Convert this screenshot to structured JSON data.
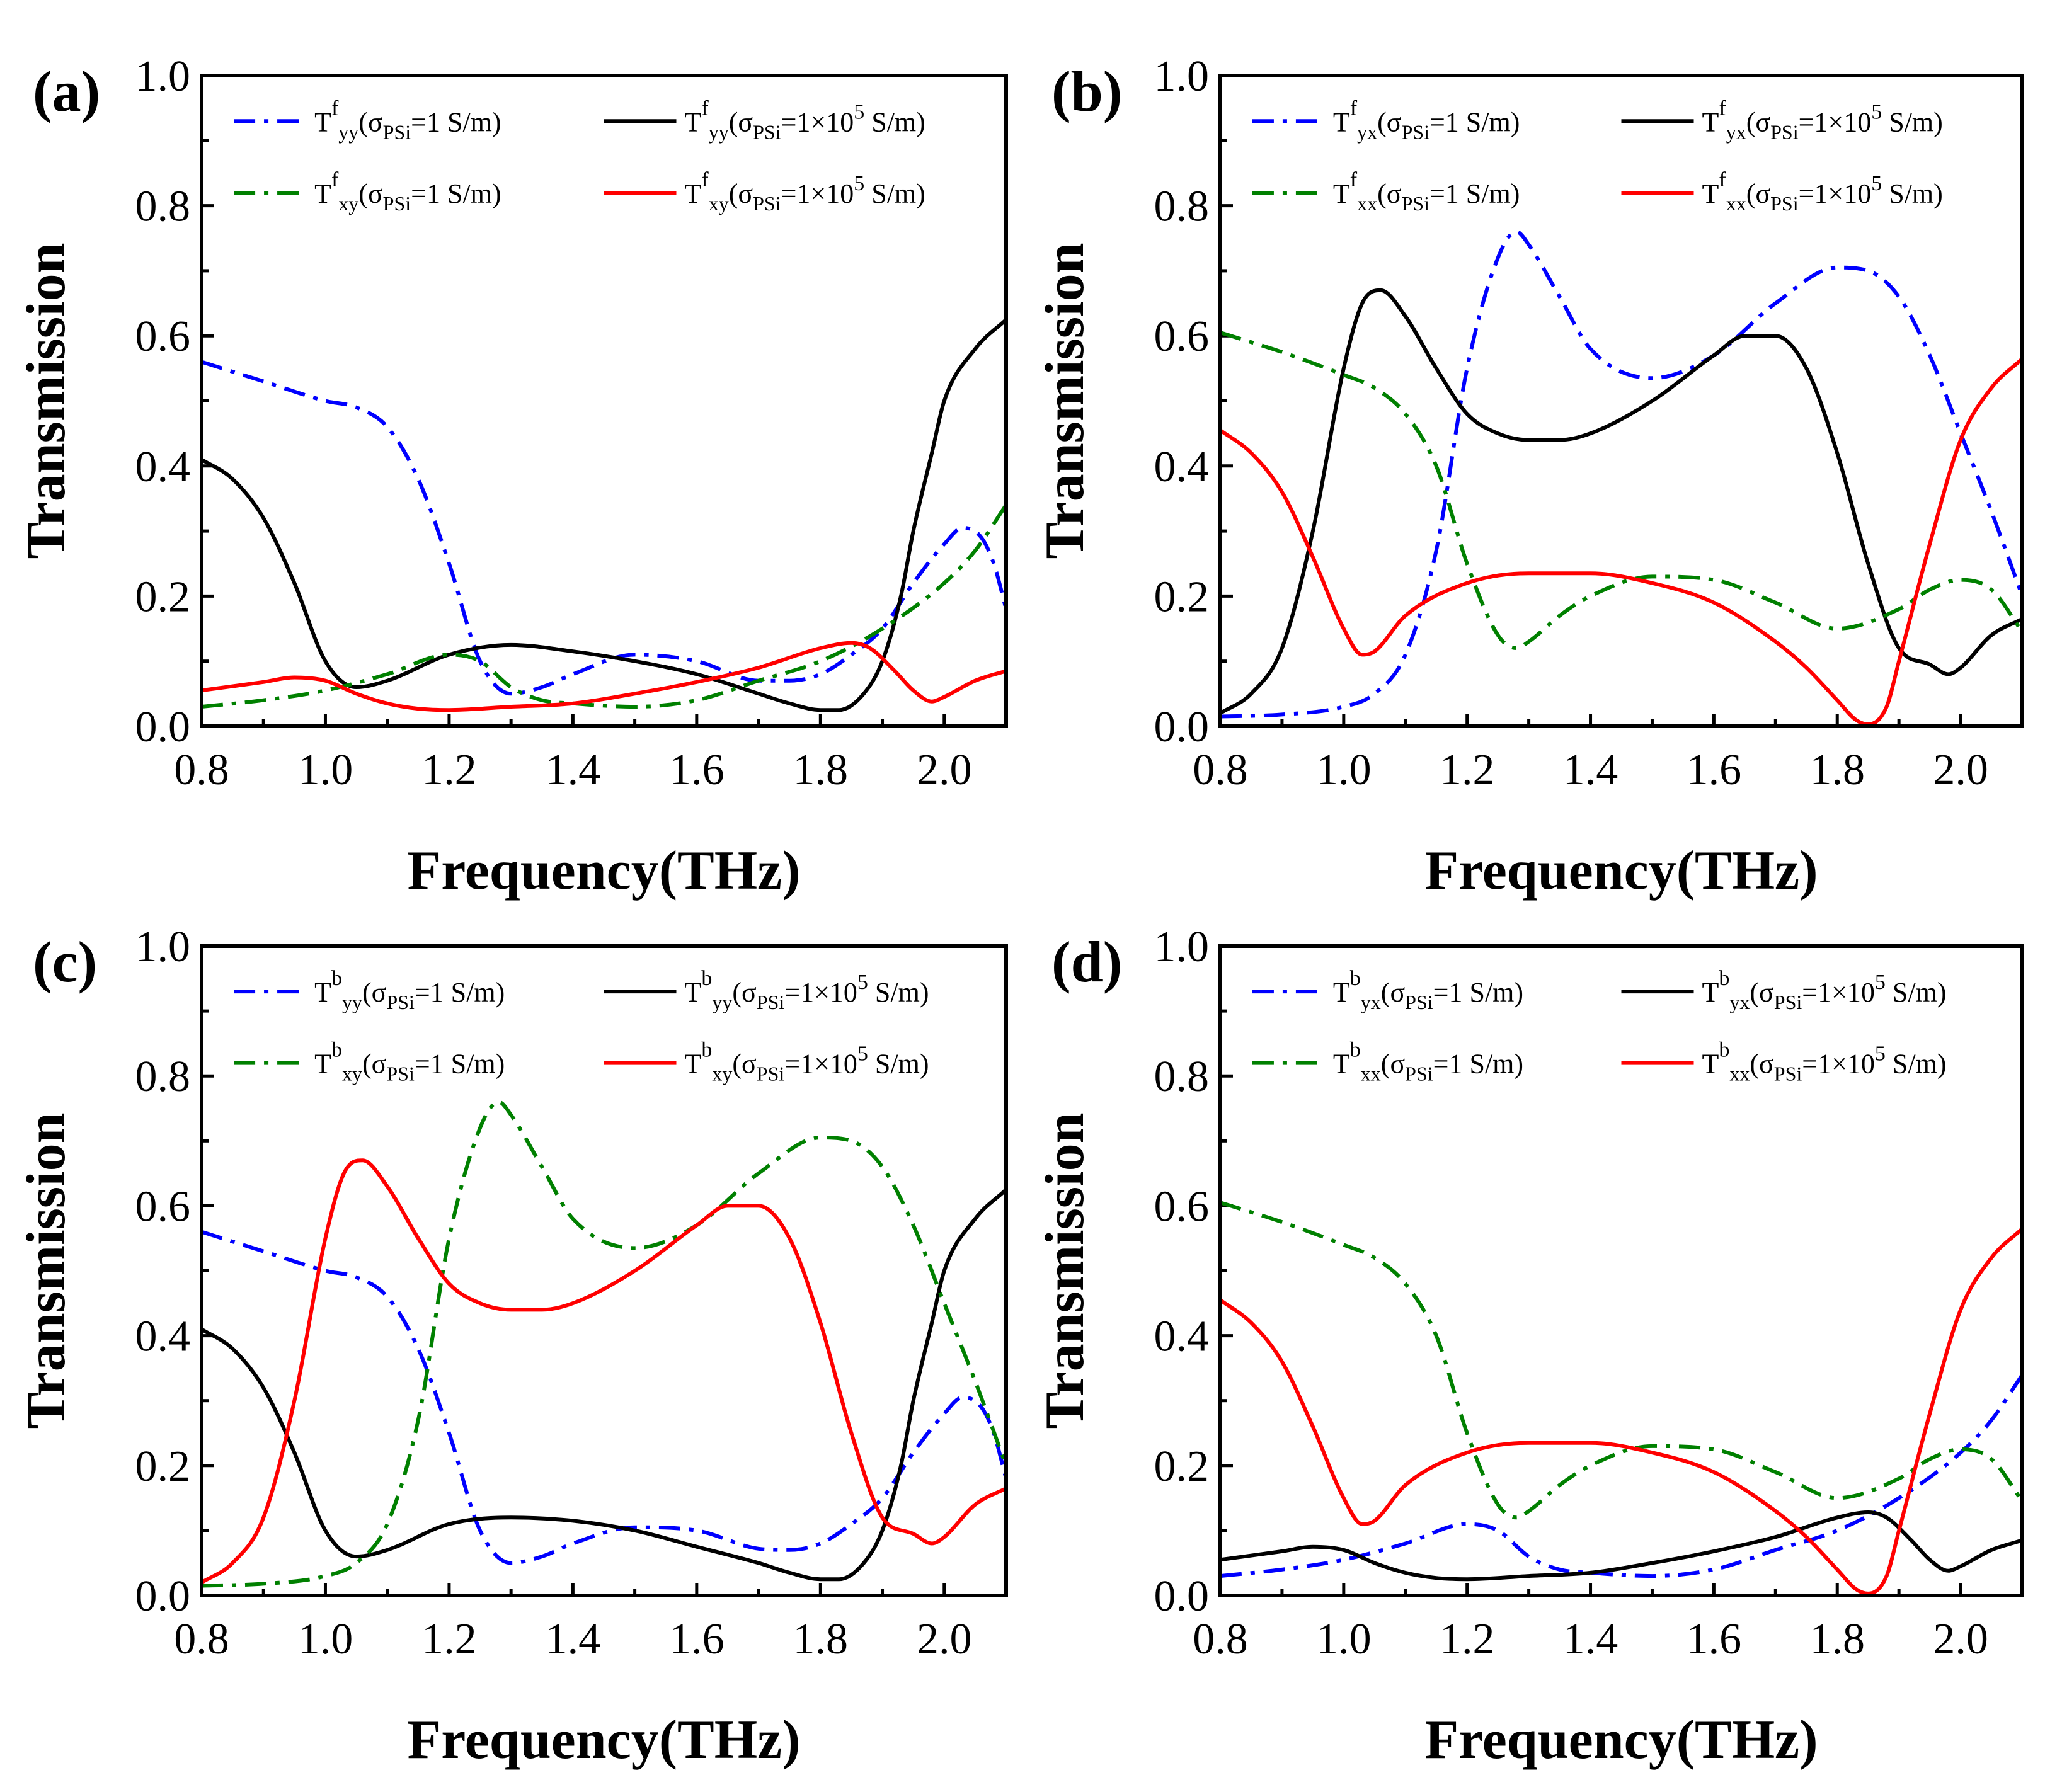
{
  "chart_data": [
    {
      "type": "line",
      "panel_label": "(a)",
      "xlabel": "Frequency(THz)",
      "ylabel": "Transmission",
      "xlim": [
        0.8,
        2.1
      ],
      "ylim": [
        0.0,
        1.0
      ],
      "x_ticks": [
        "0.8",
        "1.0",
        "1.2",
        "1.4",
        "1.6",
        "1.8",
        "2.0"
      ],
      "y_ticks": [
        "0.0",
        "0.2",
        "0.4",
        "0.6",
        "0.8",
        "1.0"
      ],
      "legend_position": "top",
      "series": [
        {
          "legend": {
            "base": "T",
            "sup": "f",
            "sub": "yy",
            "sigma_sub": "PSi",
            "cond": "=1 S/m"
          },
          "color": "#0000ff",
          "dash": "dashdot",
          "x": [
            0.8,
            0.9,
            1.0,
            1.05,
            1.1,
            1.15,
            1.2,
            1.25,
            1.3,
            1.35,
            1.4,
            1.5,
            1.6,
            1.7,
            1.75,
            1.8,
            1.85,
            1.9,
            1.95,
            2.0,
            2.03,
            2.06,
            2.08,
            2.1
          ],
          "y": [
            0.56,
            0.53,
            0.5,
            0.49,
            0.46,
            0.38,
            0.25,
            0.1,
            0.05,
            0.06,
            0.08,
            0.11,
            0.1,
            0.07,
            0.07,
            0.08,
            0.11,
            0.15,
            0.22,
            0.28,
            0.305,
            0.29,
            0.25,
            0.18
          ]
        },
        {
          "legend": {
            "base": "T",
            "sup": "f",
            "sub": "yy",
            "sigma_sub": "PSi",
            "cond": "=1×10^5 S/m"
          },
          "color": "#000000",
          "dash": "solid",
          "x": [
            0.8,
            0.85,
            0.9,
            0.95,
            1.0,
            1.05,
            1.1,
            1.2,
            1.3,
            1.4,
            1.5,
            1.6,
            1.7,
            1.75,
            1.8,
            1.83,
            1.87,
            1.9,
            1.93,
            1.95,
            1.98,
            2.0,
            2.05,
            2.1
          ],
          "y": [
            0.41,
            0.38,
            0.32,
            0.22,
            0.1,
            0.06,
            0.07,
            0.11,
            0.125,
            0.115,
            0.1,
            0.08,
            0.05,
            0.035,
            0.025,
            0.025,
            0.05,
            0.1,
            0.2,
            0.3,
            0.42,
            0.5,
            0.58,
            0.625
          ]
        },
        {
          "legend": {
            "base": "T",
            "sup": "f",
            "sub": "xy",
            "sigma_sub": "PSi",
            "cond": "=1 S/m"
          },
          "color": "#008000",
          "dash": "dashdot",
          "x": [
            0.8,
            0.9,
            1.0,
            1.1,
            1.2,
            1.25,
            1.3,
            1.35,
            1.4,
            1.5,
            1.6,
            1.7,
            1.8,
            1.9,
            2.0,
            2.05,
            2.1
          ],
          "y": [
            0.03,
            0.04,
            0.055,
            0.08,
            0.11,
            0.1,
            0.06,
            0.04,
            0.035,
            0.03,
            0.04,
            0.07,
            0.1,
            0.15,
            0.22,
            0.27,
            0.34
          ]
        },
        {
          "legend": {
            "base": "T",
            "sup": "f",
            "sub": "xy",
            "sigma_sub": "PSi",
            "cond": "=1×10^5 S/m"
          },
          "color": "#ff0000",
          "dash": "solid",
          "x": [
            0.8,
            0.9,
            0.95,
            1.0,
            1.05,
            1.1,
            1.15,
            1.2,
            1.3,
            1.4,
            1.5,
            1.6,
            1.7,
            1.8,
            1.85,
            1.88,
            1.92,
            1.95,
            1.98,
            2.0,
            2.05,
            2.1
          ],
          "y": [
            0.055,
            0.068,
            0.075,
            0.07,
            0.05,
            0.035,
            0.027,
            0.025,
            0.03,
            0.035,
            0.05,
            0.068,
            0.09,
            0.12,
            0.128,
            0.12,
            0.085,
            0.055,
            0.038,
            0.045,
            0.07,
            0.085
          ]
        }
      ]
    },
    {
      "type": "line",
      "panel_label": "(b)",
      "xlabel": "Frequency(THz)",
      "ylabel": "Transmission",
      "xlim": [
        0.8,
        2.1
      ],
      "ylim": [
        0.0,
        1.0
      ],
      "x_ticks": [
        "0.8",
        "1.0",
        "1.2",
        "1.4",
        "1.6",
        "1.8",
        "2.0"
      ],
      "y_ticks": [
        "0.0",
        "0.2",
        "0.4",
        "0.6",
        "0.8",
        "1.0"
      ],
      "legend_position": "top",
      "series": [
        {
          "legend": {
            "base": "T",
            "sup": "f",
            "sub": "yx",
            "sigma_sub": "PSi",
            "cond": "=1 S/m"
          },
          "color": "#0000ff",
          "dash": "dashdot",
          "x": [
            0.8,
            0.9,
            1.0,
            1.05,
            1.1,
            1.15,
            1.2,
            1.25,
            1.28,
            1.3,
            1.35,
            1.4,
            1.5,
            1.6,
            1.7,
            1.8,
            1.85,
            1.9,
            1.95,
            2.0,
            2.05,
            2.1
          ],
          "y": [
            0.015,
            0.018,
            0.03,
            0.05,
            0.11,
            0.27,
            0.55,
            0.72,
            0.76,
            0.74,
            0.66,
            0.58,
            0.535,
            0.57,
            0.65,
            0.705,
            0.7,
            0.66,
            0.57,
            0.45,
            0.33,
            0.2
          ]
        },
        {
          "legend": {
            "base": "T",
            "sup": "f",
            "sub": "yx",
            "sigma_sub": "PSi",
            "cond": "=1×10^5 S/m"
          },
          "color": "#000000",
          "dash": "solid",
          "x": [
            0.8,
            0.85,
            0.9,
            0.95,
            1.0,
            1.03,
            1.06,
            1.1,
            1.15,
            1.2,
            1.25,
            1.3,
            1.35,
            1.4,
            1.5,
            1.6,
            1.65,
            1.7,
            1.75,
            1.8,
            1.85,
            1.9,
            1.95,
            1.98,
            2.0,
            2.05,
            2.1
          ],
          "y": [
            0.02,
            0.05,
            0.12,
            0.3,
            0.55,
            0.65,
            0.67,
            0.63,
            0.55,
            0.48,
            0.45,
            0.44,
            0.44,
            0.45,
            0.5,
            0.57,
            0.6,
            0.6,
            0.55,
            0.42,
            0.25,
            0.12,
            0.095,
            0.08,
            0.09,
            0.14,
            0.165
          ]
        },
        {
          "legend": {
            "base": "T",
            "sup": "f",
            "sub": "xx",
            "sigma_sub": "PSi",
            "cond": "=1 S/m"
          },
          "color": "#008000",
          "dash": "dashdot",
          "x": [
            0.8,
            0.9,
            1.0,
            1.05,
            1.1,
            1.15,
            1.2,
            1.25,
            1.28,
            1.3,
            1.35,
            1.4,
            1.5,
            1.6,
            1.7,
            1.8,
            1.9,
            1.95,
            2.0,
            2.05,
            2.1
          ],
          "y": [
            0.605,
            0.575,
            0.54,
            0.52,
            0.48,
            0.4,
            0.25,
            0.14,
            0.12,
            0.13,
            0.17,
            0.2,
            0.23,
            0.225,
            0.19,
            0.15,
            0.18,
            0.21,
            0.225,
            0.21,
            0.145
          ]
        },
        {
          "legend": {
            "base": "T",
            "sup": "f",
            "sub": "xx",
            "sigma_sub": "PSi",
            "cond": "=1×10^5 S/m"
          },
          "color": "#ff0000",
          "dash": "solid",
          "x": [
            0.8,
            0.85,
            0.9,
            0.95,
            1.0,
            1.03,
            1.05,
            1.1,
            1.2,
            1.3,
            1.4,
            1.5,
            1.6,
            1.7,
            1.75,
            1.8,
            1.83,
            1.85,
            1.88,
            1.9,
            1.95,
            2.0,
            2.05,
            2.1
          ],
          "y": [
            0.455,
            0.42,
            0.36,
            0.26,
            0.15,
            0.11,
            0.115,
            0.17,
            0.22,
            0.235,
            0.235,
            0.22,
            0.19,
            0.13,
            0.09,
            0.04,
            0.01,
            0.003,
            0.03,
            0.1,
            0.28,
            0.44,
            0.52,
            0.565
          ]
        }
      ]
    },
    {
      "type": "line",
      "panel_label": "(c)",
      "xlabel": "Frequency(THz)",
      "ylabel": "Transmission",
      "xlim": [
        0.8,
        2.1
      ],
      "ylim": [
        0.0,
        1.0
      ],
      "x_ticks": [
        "0.8",
        "1.0",
        "1.2",
        "1.4",
        "1.6",
        "1.8",
        "2.0"
      ],
      "y_ticks": [
        "0.0",
        "0.2",
        "0.4",
        "0.6",
        "0.8",
        "1.0"
      ],
      "legend_position": "top",
      "series": [
        {
          "legend": {
            "base": "T",
            "sup": "b",
            "sub": "yy",
            "sigma_sub": "PSi",
            "cond": "=1 S/m"
          },
          "color": "#0000ff",
          "dash": "dashdot",
          "x": [
            0.8,
            0.9,
            1.0,
            1.05,
            1.1,
            1.15,
            1.2,
            1.25,
            1.3,
            1.35,
            1.4,
            1.5,
            1.6,
            1.7,
            1.75,
            1.8,
            1.85,
            1.9,
            1.95,
            2.0,
            2.03,
            2.06,
            2.08,
            2.1
          ],
          "y": [
            0.56,
            0.53,
            0.5,
            0.49,
            0.46,
            0.38,
            0.25,
            0.1,
            0.05,
            0.06,
            0.08,
            0.105,
            0.1,
            0.072,
            0.07,
            0.08,
            0.11,
            0.15,
            0.22,
            0.28,
            0.305,
            0.29,
            0.25,
            0.18
          ]
        },
        {
          "legend": {
            "base": "T",
            "sup": "b",
            "sub": "yy",
            "sigma_sub": "PSi",
            "cond": "=1×10^5 S/m"
          },
          "color": "#000000",
          "dash": "solid",
          "x": [
            0.8,
            0.85,
            0.9,
            0.95,
            1.0,
            1.05,
            1.1,
            1.2,
            1.3,
            1.4,
            1.5,
            1.6,
            1.7,
            1.75,
            1.8,
            1.83,
            1.87,
            1.9,
            1.93,
            1.95,
            1.98,
            2.0,
            2.05,
            2.1
          ],
          "y": [
            0.41,
            0.38,
            0.32,
            0.22,
            0.1,
            0.06,
            0.07,
            0.11,
            0.12,
            0.115,
            0.1,
            0.075,
            0.05,
            0.035,
            0.025,
            0.025,
            0.05,
            0.1,
            0.2,
            0.3,
            0.42,
            0.5,
            0.58,
            0.625
          ]
        },
        {
          "legend": {
            "base": "T",
            "sup": "b",
            "sub": "xy",
            "sigma_sub": "PSi",
            "cond": "=1 S/m"
          },
          "color": "#008000",
          "dash": "dashdot",
          "x": [
            0.8,
            0.9,
            1.0,
            1.05,
            1.1,
            1.15,
            1.2,
            1.25,
            1.28,
            1.3,
            1.35,
            1.4,
            1.5,
            1.6,
            1.7,
            1.8,
            1.85,
            1.9,
            1.95,
            2.0,
            2.05,
            2.1
          ],
          "y": [
            0.015,
            0.018,
            0.03,
            0.05,
            0.11,
            0.27,
            0.55,
            0.72,
            0.76,
            0.74,
            0.66,
            0.58,
            0.535,
            0.57,
            0.65,
            0.705,
            0.7,
            0.66,
            0.57,
            0.45,
            0.33,
            0.2
          ]
        },
        {
          "legend": {
            "base": "T",
            "sup": "b",
            "sub": "xy",
            "sigma_sub": "PSi",
            "cond": "=1×10^5 S/m"
          },
          "color": "#ff0000",
          "dash": "solid",
          "x": [
            0.8,
            0.85,
            0.9,
            0.95,
            1.0,
            1.03,
            1.06,
            1.1,
            1.15,
            1.2,
            1.25,
            1.3,
            1.35,
            1.4,
            1.5,
            1.6,
            1.65,
            1.7,
            1.75,
            1.8,
            1.85,
            1.9,
            1.95,
            1.98,
            2.0,
            2.05,
            2.1
          ],
          "y": [
            0.02,
            0.05,
            0.12,
            0.3,
            0.55,
            0.65,
            0.67,
            0.63,
            0.55,
            0.48,
            0.45,
            0.44,
            0.44,
            0.45,
            0.5,
            0.57,
            0.6,
            0.6,
            0.55,
            0.42,
            0.25,
            0.12,
            0.095,
            0.08,
            0.09,
            0.14,
            0.165
          ]
        }
      ]
    },
    {
      "type": "line",
      "panel_label": "(d)",
      "xlabel": "Frequency(THz)",
      "ylabel": "Transmission",
      "xlim": [
        0.8,
        2.1
      ],
      "ylim": [
        0.0,
        1.0
      ],
      "x_ticks": [
        "0.8",
        "1.0",
        "1.2",
        "1.4",
        "1.6",
        "1.8",
        "2.0"
      ],
      "y_ticks": [
        "0.0",
        "0.2",
        "0.4",
        "0.6",
        "0.8",
        "1.0"
      ],
      "legend_position": "top",
      "series": [
        {
          "legend": {
            "base": "T",
            "sup": "b",
            "sub": "yx",
            "sigma_sub": "PSi",
            "cond": "=1 S/m"
          },
          "color": "#0000ff",
          "dash": "dashdot",
          "x": [
            0.8,
            0.9,
            1.0,
            1.1,
            1.2,
            1.25,
            1.3,
            1.35,
            1.4,
            1.5,
            1.6,
            1.7,
            1.8,
            1.9,
            2.0,
            2.05,
            2.1
          ],
          "y": [
            0.03,
            0.04,
            0.055,
            0.08,
            0.11,
            0.1,
            0.06,
            0.04,
            0.035,
            0.03,
            0.04,
            0.07,
            0.1,
            0.15,
            0.22,
            0.27,
            0.34
          ]
        },
        {
          "legend": {
            "base": "T",
            "sup": "b",
            "sub": "yx",
            "sigma_sub": "PSi",
            "cond": "=1×10^5 S/m"
          },
          "color": "#000000",
          "dash": "solid",
          "x": [
            0.8,
            0.9,
            0.95,
            1.0,
            1.05,
            1.1,
            1.15,
            1.2,
            1.3,
            1.4,
            1.5,
            1.6,
            1.7,
            1.8,
            1.85,
            1.88,
            1.92,
            1.95,
            1.98,
            2.0,
            2.05,
            2.1
          ],
          "y": [
            0.055,
            0.068,
            0.075,
            0.07,
            0.05,
            0.035,
            0.027,
            0.025,
            0.03,
            0.035,
            0.05,
            0.068,
            0.09,
            0.12,
            0.128,
            0.12,
            0.085,
            0.055,
            0.038,
            0.045,
            0.07,
            0.085
          ]
        },
        {
          "legend": {
            "base": "T",
            "sup": "b",
            "sub": "xx",
            "sigma_sub": "PSi",
            "cond": "=1 S/m"
          },
          "color": "#008000",
          "dash": "dashdot",
          "x": [
            0.8,
            0.9,
            1.0,
            1.05,
            1.1,
            1.15,
            1.2,
            1.25,
            1.28,
            1.3,
            1.35,
            1.4,
            1.5,
            1.6,
            1.7,
            1.8,
            1.9,
            1.95,
            2.0,
            2.05,
            2.1
          ],
          "y": [
            0.605,
            0.575,
            0.54,
            0.52,
            0.48,
            0.4,
            0.25,
            0.14,
            0.12,
            0.13,
            0.17,
            0.2,
            0.23,
            0.225,
            0.19,
            0.15,
            0.18,
            0.21,
            0.225,
            0.21,
            0.145
          ]
        },
        {
          "legend": {
            "base": "T",
            "sup": "b",
            "sub": "xx",
            "sigma_sub": "PSi",
            "cond": "=1×10^5 S/m"
          },
          "color": "#ff0000",
          "dash": "solid",
          "x": [
            0.8,
            0.85,
            0.9,
            0.95,
            1.0,
            1.03,
            1.05,
            1.1,
            1.2,
            1.3,
            1.4,
            1.5,
            1.6,
            1.7,
            1.75,
            1.8,
            1.83,
            1.85,
            1.88,
            1.9,
            1.95,
            2.0,
            2.05,
            2.1
          ],
          "y": [
            0.455,
            0.42,
            0.36,
            0.26,
            0.15,
            0.11,
            0.115,
            0.17,
            0.22,
            0.235,
            0.235,
            0.22,
            0.19,
            0.13,
            0.09,
            0.04,
            0.01,
            0.003,
            0.03,
            0.1,
            0.28,
            0.44,
            0.52,
            0.565
          ]
        }
      ]
    }
  ]
}
